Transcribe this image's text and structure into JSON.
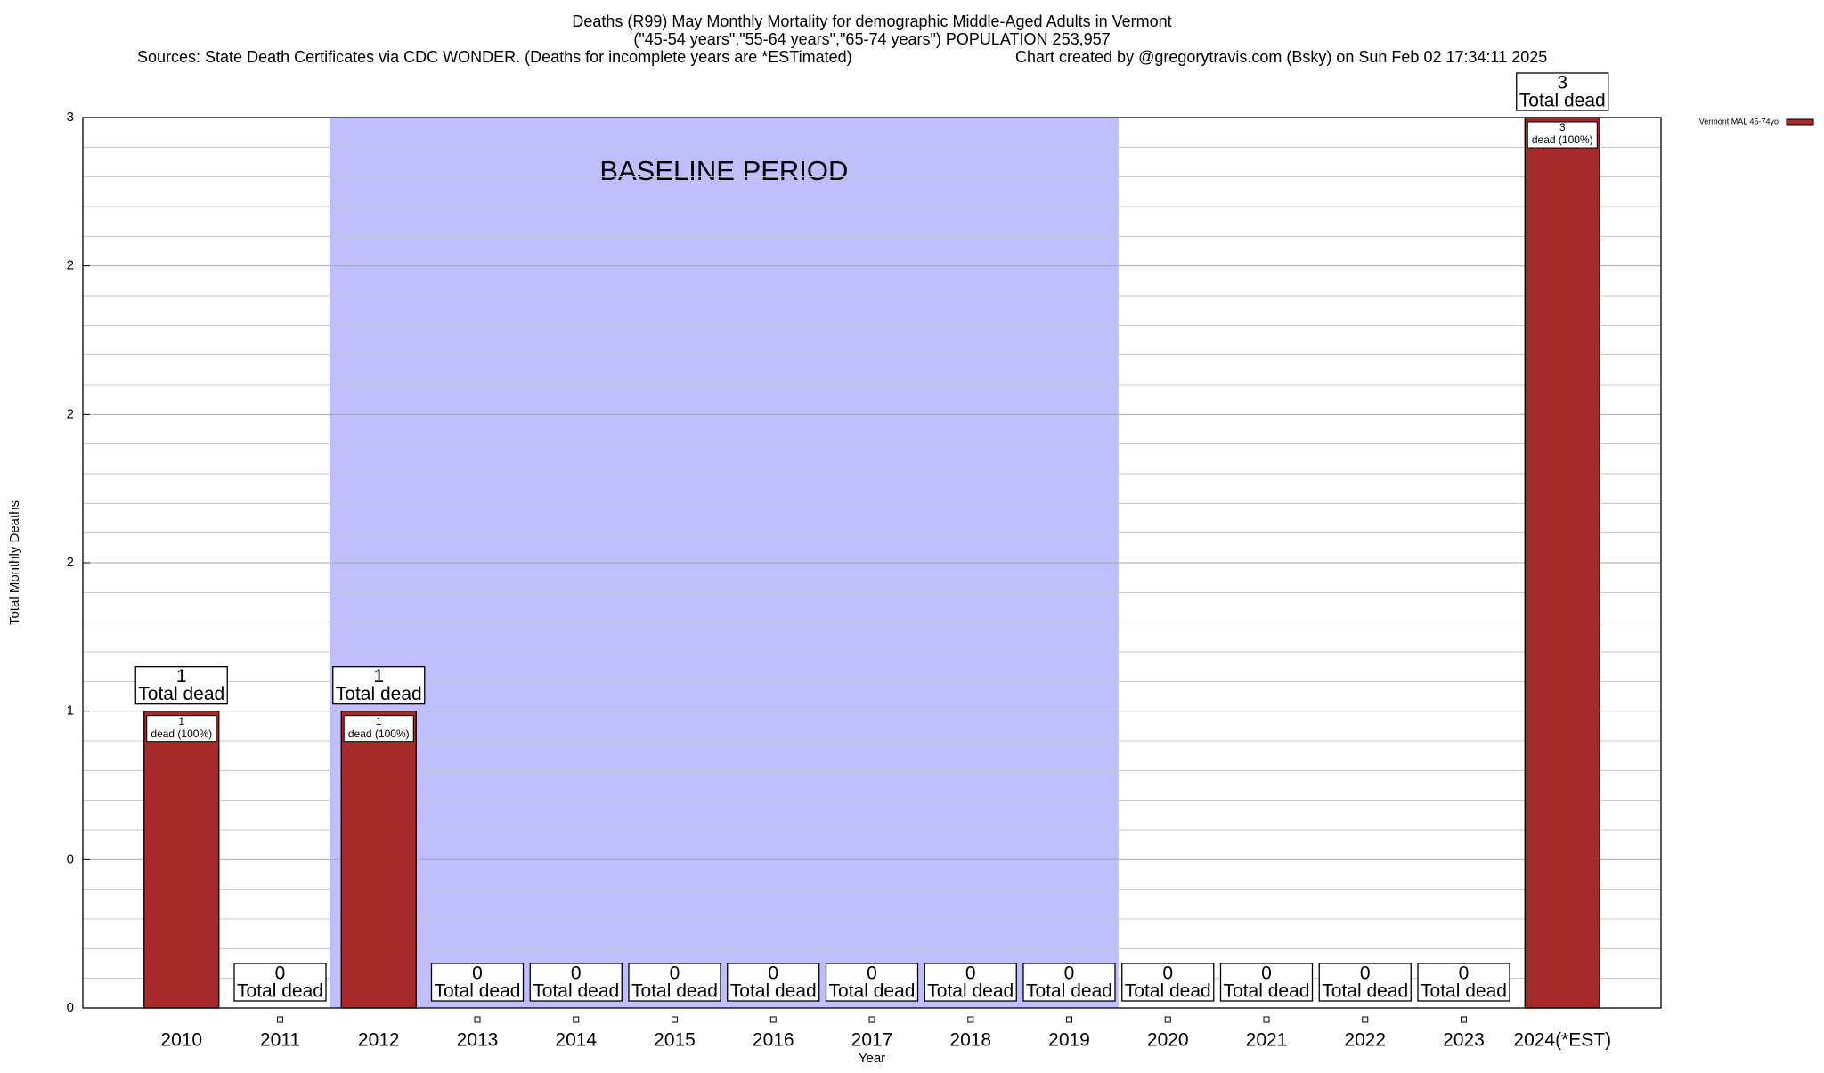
{
  "chart_data": {
    "type": "bar",
    "title": "Deaths (R99) May Monthly Mortality for demographic Middle-Aged Adults in Vermont",
    "subtitle": "(\"45-54 years\",\"55-64 years\",\"65-74 years\") POPULATION 253,957",
    "source": "Sources: State Death Certificates via CDC WONDER. (Deaths for incomplete years are *ESTimated)",
    "credit": "Chart created by @gregorytravis.com (Bsky) on Sun Feb 02 17:34:11 2025",
    "x_label": "Year",
    "y_label": "Total Monthly Deaths",
    "categories": [
      "2010",
      "2011",
      "2012",
      "2013",
      "2014",
      "2015",
      "2016",
      "2017",
      "2018",
      "2019",
      "2020",
      "2021",
      "2022",
      "2023",
      "2024(*EST)"
    ],
    "series": [
      {
        "name": "Vermont MAL 45-74yo",
        "color": "#a52a2a",
        "values": [
          1,
          0,
          1,
          0,
          0,
          0,
          0,
          0,
          0,
          0,
          0,
          0,
          0,
          0,
          3
        ],
        "inner_labels": [
          "dead (100%)",
          null,
          "dead (100%)",
          null,
          null,
          null,
          null,
          null,
          null,
          null,
          null,
          null,
          null,
          null,
          "dead (100%)"
        ]
      }
    ],
    "total_label": "Total dead",
    "baseline": {
      "label": "BASELINE PERIOD",
      "from": "2012",
      "to": "2019",
      "color": "#bfbfff"
    },
    "ylim": [
      0,
      3
    ],
    "yticks": [
      0,
      {
        "value": 0.5,
        "label": "0"
      },
      1,
      {
        "value": 1.5,
        "label": "2"
      },
      2,
      {
        "value": 2.5,
        "label": "2"
      },
      3
    ],
    "grid": true,
    "legend": "top-right"
  }
}
